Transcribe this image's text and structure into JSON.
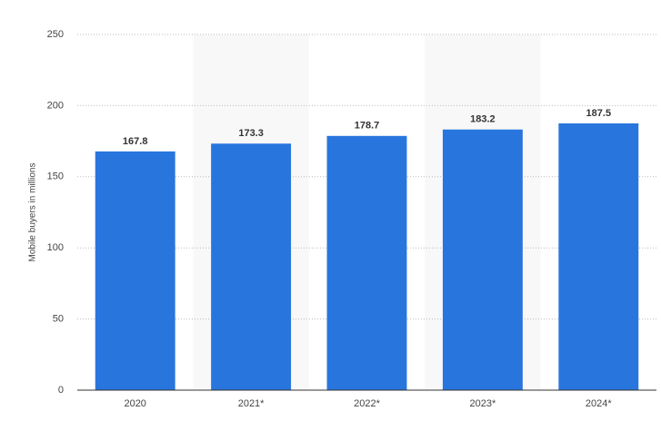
{
  "chart_data": {
    "type": "bar",
    "y_label": "Mobile buyers in millions",
    "categories": [
      "2020",
      "2021*",
      "2022*",
      "2023*",
      "2024*"
    ],
    "values": [
      167.8,
      173.3,
      178.7,
      183.2,
      187.5
    ],
    "color": "#2876dd",
    "ylim": [
      0,
      250
    ],
    "yticks": [
      0,
      50,
      100,
      150,
      200,
      250
    ],
    "grid": true
  }
}
